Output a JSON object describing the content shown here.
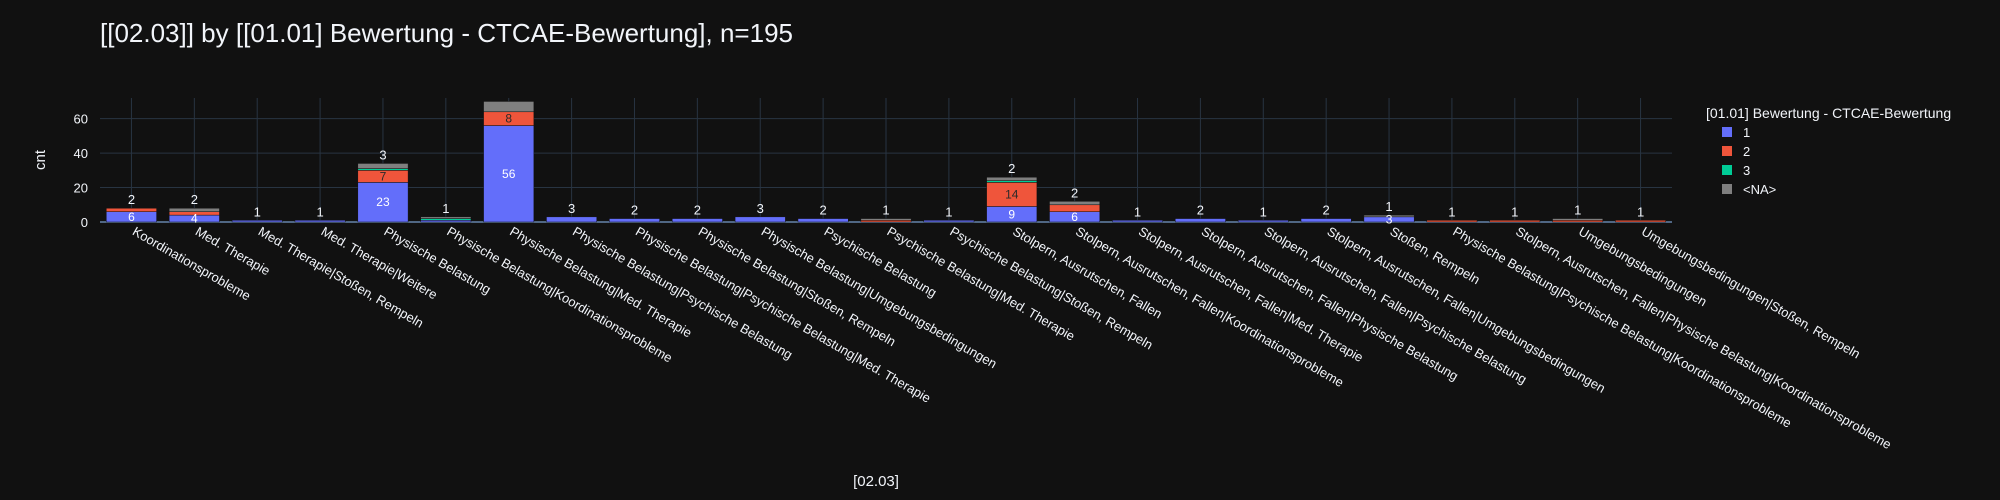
{
  "chart_data": {
    "type": "bar",
    "barmode": "stack",
    "title": "[[02.03]] by [[01.01] Bewertung - CTCAE-Bewertung], n=195",
    "xlabel": "[02.03]",
    "ylabel": "cnt",
    "ylim": [
      0,
      72
    ],
    "yticks": [
      0,
      20,
      40,
      60
    ],
    "grid": true,
    "legend_position": "top-right",
    "legend_title": "[01.01] Bewertung - CTCAE-Bewertung",
    "categories": [
      "Koordinationsprobleme",
      "Med. Therapie",
      "Med. Therapie|Stoßen, Rempeln",
      "Med. Therapie|Weitere",
      "Physische Belastung",
      "Physische Belastung|Koordinationsprobleme",
      "Physische Belastung|Med. Therapie",
      "Physische Belastung|Psychische Belastung",
      "Physische Belastung|Psychische Belastung|Med. Therapie",
      "Physische Belastung|Stoßen, Rempeln",
      "Physische Belastung|Umgebungsbedingungen",
      "Psychische Belastung",
      "Psychische Belastung|Med. Therapie",
      "Psychische Belastung|Stoßen, Rempeln",
      "Stolpern, Ausrutschen, Fallen",
      "Stolpern, Ausrutschen, Fallen|Koordinationsprobleme",
      "Stolpern, Ausrutschen, Fallen|Med. Therapie",
      "Stolpern, Ausrutschen, Fallen|Physische Belastung",
      "Stolpern, Ausrutschen, Fallen|Psychische Belastung",
      "Stolpern, Ausrutschen, Fallen|Umgebungsbedingungen",
      "Stoßen, Rempeln",
      "Physische Belastung|Psychische Belastung|Koordinationsprobleme",
      "Stolpern, Ausrutschen, Fallen|Physische Belastung|Koordinationsprobleme",
      "Umgebungsbedingungen",
      "Umgebungsbedingungen|Stoßen, Rempeln"
    ],
    "series": [
      {
        "name": "1",
        "color": "#636efa",
        "values": [
          6,
          4,
          1,
          1,
          23,
          1,
          56,
          3,
          2,
          2,
          3,
          2,
          0,
          1,
          9,
          6,
          1,
          2,
          1,
          2,
          3,
          0,
          0,
          0,
          0
        ],
        "labels": [
          "6",
          "4",
          "",
          "",
          "23",
          "",
          "56",
          "",
          "",
          "",
          "",
          "",
          "",
          "",
          "9",
          "6",
          "",
          "",
          "",
          "",
          "3",
          "",
          "",
          "",
          ""
        ]
      },
      {
        "name": "2",
        "color": "#ef553b",
        "values": [
          2,
          2,
          0,
          0,
          7,
          0,
          8,
          0,
          0,
          0,
          0,
          0,
          1,
          0,
          14,
          4,
          0,
          0,
          0,
          0,
          0,
          1,
          1,
          1,
          1
        ],
        "labels": [
          "",
          "",
          "",
          "",
          "7",
          "",
          "8",
          "",
          "",
          "",
          "",
          "",
          "",
          "",
          "14",
          "",
          "",
          "",
          "",
          "",
          "",
          "",
          "",
          "",
          ""
        ]
      },
      {
        "name": "3",
        "color": "#00cc96",
        "values": [
          0,
          0,
          0,
          0,
          1,
          1,
          0,
          0,
          0,
          0,
          0,
          0,
          0,
          0,
          1,
          0,
          0,
          0,
          0,
          0,
          0,
          0,
          0,
          0,
          0
        ],
        "labels": []
      },
      {
        "name": "<NA>",
        "color": "#7f7f7f",
        "values": [
          0,
          2,
          0,
          0,
          3,
          1,
          6,
          0,
          0,
          0,
          0,
          0,
          1,
          0,
          2,
          2,
          0,
          0,
          0,
          0,
          1,
          0,
          0,
          1,
          0
        ],
        "labels": []
      }
    ],
    "top_labels": [
      "2",
      "2",
      "1",
      "1",
      "3",
      "1",
      "",
      "3",
      "2",
      "2",
      "3",
      "2",
      "1",
      "1",
      "2",
      "2",
      "1",
      "2",
      "1",
      "2",
      "1",
      "1",
      "1",
      "1",
      "1"
    ]
  }
}
